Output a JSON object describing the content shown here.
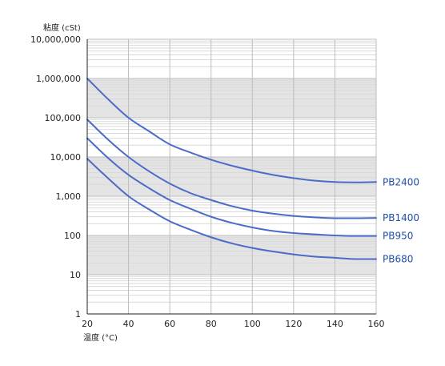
{
  "chart_data": {
    "type": "line",
    "ylabel": "粘度 (cSt)",
    "xlabel": "温度 (°C)",
    "x_ticks": [
      "20",
      "40",
      "60",
      "80",
      "100",
      "120",
      "140",
      "160"
    ],
    "y_ticks": [
      "1",
      "10",
      "100",
      "1,000",
      "10,000",
      "100,000",
      "1,000,000",
      "10,000,000"
    ],
    "xlim": [
      20,
      160
    ],
    "ylim": [
      1,
      10000000
    ],
    "y_scale": "log",
    "grid": true,
    "colors": {
      "series": "#4a6cc8",
      "label": "#1f4ea8",
      "band": "#e4e4e4",
      "minor_grid": "#d9d9d9",
      "major_grid": "#bdbdbd",
      "axis": "#222222"
    },
    "series": [
      {
        "name": "PB2400",
        "x": [
          20,
          30,
          40,
          50,
          60,
          70,
          80,
          90,
          100,
          110,
          120,
          130,
          140,
          150,
          160
        ],
        "y": [
          1000000,
          300000,
          100000,
          45000,
          21000,
          13000,
          8500,
          6000,
          4500,
          3500,
          2900,
          2500,
          2300,
          2250,
          2300
        ]
      },
      {
        "name": "PB1400",
        "x": [
          20,
          30,
          40,
          50,
          60,
          70,
          80,
          90,
          100,
          110,
          120,
          130,
          140,
          150,
          160
        ],
        "y": [
          90000,
          28000,
          10000,
          4300,
          2100,
          1200,
          800,
          560,
          430,
          360,
          315,
          290,
          275,
          275,
          280
        ]
      },
      {
        "name": "PB950",
        "x": [
          20,
          30,
          40,
          50,
          60,
          70,
          80,
          90,
          100,
          110,
          120,
          130,
          140,
          150,
          160
        ],
        "y": [
          30000,
          9500,
          3500,
          1600,
          800,
          480,
          300,
          210,
          160,
          130,
          115,
          107,
          100,
          97,
          97
        ]
      },
      {
        "name": "PB680",
        "x": [
          20,
          30,
          40,
          50,
          60,
          70,
          80,
          90,
          100,
          110,
          120,
          130,
          140,
          150,
          160
        ],
        "y": [
          9000,
          2900,
          1000,
          460,
          230,
          140,
          90,
          63,
          48,
          39,
          33,
          29,
          27,
          25,
          25
        ]
      }
    ]
  }
}
